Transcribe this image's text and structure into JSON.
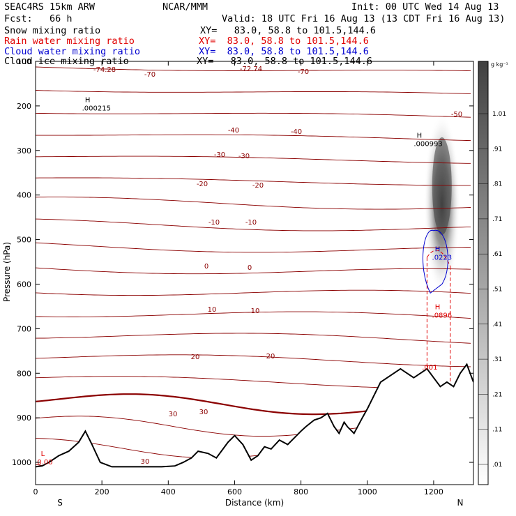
{
  "header": {
    "model": "SEAC4RS 15km ARW",
    "institution": "NCAR/MMM",
    "init": "Init: 00 UTC Wed 14 Aug 13",
    "fcst": "Fcst:   66 h",
    "valid": "Valid: 18 UTC Fri 16 Aug 13 (13 CDT Fri 16 Aug 13)"
  },
  "fields": [
    {
      "label": "Snow mixing ratio",
      "xy": "XY=   83.0, 58.8 to 101.5,144.6",
      "color": "#000000"
    },
    {
      "label": "Rain water mixing ratio",
      "xy": "XY=  83.0, 58.8 to 101.5,144.6",
      "color": "#e00000"
    },
    {
      "label": "Cloud water mixing ratio",
      "xy": "XY=  83.0, 58.8 to 101.5,144.6",
      "color": "#0000d0"
    },
    {
      "label": "Cloud ice mixing ratio",
      "xy": "XY=   83.0, 58.8 to 101.5,144.6",
      "color": "#000000"
    }
  ],
  "chart_data": {
    "type": "line",
    "xlabel": "Distance (km)",
    "ylabel": "Pressure (hPa)",
    "x_ticks": [
      "0",
      "200",
      "400",
      "600",
      "800",
      "1000",
      "1200"
    ],
    "y_ticks": [
      "100",
      "200",
      "300",
      "400",
      "500",
      "600",
      "700",
      "800",
      "900",
      "1000"
    ],
    "x_range": [
      0,
      1320
    ],
    "y_range": [
      100,
      1050
    ],
    "x_end_labels": {
      "left": "S",
      "right": "N"
    },
    "colorbar": {
      "unit": "g kg⁻¹",
      "labels": [
        "1.01",
        ".91",
        ".81",
        ".71",
        ".61",
        ".51",
        ".41",
        ".31",
        ".21",
        ".11",
        ".01"
      ]
    },
    "temperature_labels": [
      "-74.28",
      "-72.74",
      "-70",
      "-70",
      "-50",
      "-40",
      "-40",
      "-30",
      "-30",
      "-20",
      "-20",
      "-10",
      "-10",
      "0",
      "0",
      "10",
      "10",
      "20",
      "20",
      "30",
      "30",
      "30"
    ],
    "extrema_labels": [
      {
        "tag": "H",
        "value": ".000215",
        "x": 140,
        "p": 210,
        "color": "#000000"
      },
      {
        "tag": "H",
        "value": ".000993",
        "x": 1140,
        "p": 290,
        "color": "#000000"
      },
      {
        "tag": "H",
        "value": ".0223",
        "x": 1195,
        "p": 545,
        "color": "#0000d0"
      },
      {
        "tag": "H",
        "value": ".0896",
        "x": 1195,
        "p": 675,
        "color": "#e00000"
      },
      {
        "tag": "",
        "value": ".001",
        "x": 1165,
        "p": 792,
        "color": "#e00000"
      },
      {
        "tag": "L",
        "value": "0.00",
        "x": 5,
        "p": 1005,
        "color": "#e00000"
      }
    ],
    "terrain": {
      "x": [
        0,
        20,
        40,
        70,
        100,
        130,
        150,
        170,
        195,
        230,
        300,
        380,
        420,
        445,
        470,
        490,
        520,
        545,
        560,
        580,
        600,
        625,
        650,
        670,
        690,
        710,
        735,
        760,
        780,
        800,
        815,
        840,
        860,
        880,
        900,
        915,
        930,
        940,
        960,
        985,
        1000,
        1040,
        1080,
        1100,
        1120,
        1140,
        1160,
        1180,
        1200,
        1220,
        1240,
        1260,
        1280,
        1300,
        1310,
        1320
      ],
      "p": [
        1010,
        1008,
        1000,
        985,
        975,
        955,
        930,
        960,
        1000,
        1010,
        1010,
        1010,
        1008,
        1000,
        990,
        975,
        980,
        990,
        975,
        955,
        940,
        960,
        995,
        985,
        965,
        970,
        950,
        960,
        945,
        930,
        920,
        905,
        900,
        890,
        920,
        935,
        910,
        920,
        935,
        900,
        880,
        820,
        800,
        790,
        800,
        810,
        800,
        790,
        810,
        830,
        820,
        830,
        800,
        780,
        800,
        820
      ]
    }
  }
}
